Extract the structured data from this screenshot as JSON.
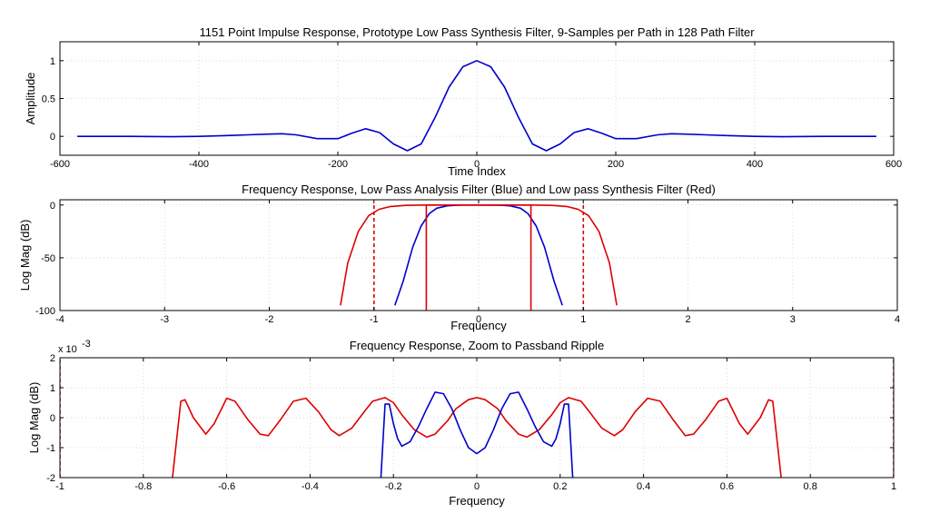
{
  "chart_data": [
    {
      "type": "line",
      "id": "impulse",
      "title": "1151 Point Impulse Response, Prototype Low Pass Synthesis Filter, 9-Samples per Path in 128 Path Filter",
      "xlabel": "Time Index",
      "ylabel": "Amplitude",
      "xlim": [
        -600,
        600
      ],
      "ylim": [
        -0.25,
        1.25
      ],
      "xticks": [
        -600,
        -400,
        -200,
        0,
        200,
        400,
        600
      ],
      "xtick_labels": [
        "-600",
        "-400",
        "-200",
        "0",
        "200",
        "400",
        "600"
      ],
      "yticks": [
        0,
        0.5,
        1
      ],
      "ytick_labels": [
        "0",
        "0.5",
        "1"
      ],
      "grid": true,
      "series": [
        {
          "color": "#0000cc",
          "x": [
            -575,
            -500,
            -440,
            -400,
            -360,
            -330,
            -300,
            -280,
            -260,
            -230,
            -200,
            -180,
            -160,
            -140,
            -120,
            -100,
            -80,
            -60,
            -40,
            -20,
            0,
            20,
            40,
            60,
            80,
            100,
            120,
            140,
            160,
            180,
            200,
            230,
            260,
            280,
            300,
            330,
            360,
            400,
            440,
            500,
            575
          ],
          "y": [
            0,
            0,
            -0.005,
            0,
            0.01,
            0.02,
            0.03,
            0.035,
            0.02,
            -0.03,
            -0.03,
            0.04,
            0.1,
            0.05,
            -0.1,
            -0.19,
            -0.1,
            0.25,
            0.65,
            0.92,
            1.0,
            0.92,
            0.65,
            0.25,
            -0.1,
            -0.19,
            -0.1,
            0.05,
            0.1,
            0.04,
            -0.03,
            -0.03,
            0.02,
            0.035,
            0.03,
            0.02,
            0.01,
            0,
            -0.005,
            0,
            0
          ]
        }
      ]
    },
    {
      "type": "line",
      "id": "freq",
      "title": "Frequency Response, Low Pass Analysis Filter (Blue) and Low pass Synthesis Filter (Red)",
      "xlabel": "Frequency",
      "ylabel": "Log Mag (dB)",
      "xlim": [
        -4,
        4
      ],
      "ylim": [
        -100,
        5
      ],
      "xticks": [
        -4,
        -3,
        -2,
        -1,
        0,
        1,
        2,
        3,
        4
      ],
      "xtick_labels": [
        "-4",
        "-3",
        "-2",
        "-1",
        "0",
        "1",
        "2",
        "3",
        "4"
      ],
      "yticks": [
        -100,
        -50,
        0
      ],
      "ytick_labels": [
        "-100",
        "-50",
        "0"
      ],
      "grid": true,
      "series": [
        {
          "color": "#dd0000",
          "x": [
            -1.32,
            -1.25,
            -1.15,
            -1.05,
            -0.95,
            -0.85,
            -0.7,
            -0.5,
            0,
            0.5,
            0.7,
            0.85,
            0.95,
            1.05,
            1.15,
            1.25,
            1.32
          ],
          "y": [
            -95,
            -55,
            -25,
            -10,
            -4,
            -1.5,
            -0.3,
            0,
            0,
            0,
            -0.3,
            -1.5,
            -4,
            -10,
            -25,
            -55,
            -95
          ]
        },
        {
          "color": "#0000cc",
          "x": [
            -0.8,
            -0.72,
            -0.63,
            -0.55,
            -0.47,
            -0.4,
            -0.3,
            -0.2,
            0,
            0.2,
            0.3,
            0.4,
            0.47,
            0.55,
            0.63,
            0.72,
            0.8
          ],
          "y": [
            -95,
            -72,
            -40,
            -20,
            -8,
            -3,
            -0.8,
            -0.1,
            0,
            -0.1,
            -0.8,
            -3,
            -8,
            -20,
            -40,
            -72,
            -95
          ]
        },
        {
          "color": "#dd0000",
          "x": [
            -0.5,
            -0.5,
            0.5,
            0.5
          ],
          "y": [
            -100,
            0,
            0,
            -100
          ]
        },
        {
          "color": "#dd0000",
          "dashed": true,
          "x": [
            -1,
            -1
          ],
          "y": [
            -100,
            0
          ]
        },
        {
          "color": "#dd0000",
          "dashed": true,
          "x": [
            1,
            1
          ],
          "y": [
            -100,
            0
          ]
        }
      ]
    },
    {
      "type": "line",
      "id": "ripple",
      "title": "Frequency Response, Zoom to Passband Ripple",
      "xlabel": "Frequency",
      "ylabel": "Log Mag (dB)",
      "exponent_label": "x 10",
      "exponent_power": "-3",
      "xlim": [
        -1,
        1
      ],
      "ylim": [
        -2,
        2
      ],
      "xticks": [
        -1,
        -0.8,
        -0.6,
        -0.4,
        -0.2,
        0,
        0.2,
        0.4,
        0.6,
        0.8,
        1
      ],
      "xtick_labels": [
        "-1",
        "-0.8",
        "-0.6",
        "-0.4",
        "-0.2",
        "0",
        "0.2",
        "0.4",
        "0.6",
        "0.8",
        "1"
      ],
      "yticks": [
        -2,
        -1,
        0,
        1,
        2
      ],
      "ytick_labels": [
        "-2",
        "-1",
        "0",
        "1",
        "2"
      ],
      "grid": true,
      "series": [
        {
          "color": "#dd0000",
          "x": [
            -0.73,
            -0.71,
            -0.7,
            -0.68,
            -0.65,
            -0.63,
            -0.6,
            -0.58,
            -0.55,
            -0.52,
            -0.5,
            -0.47,
            -0.44,
            -0.41,
            -0.38,
            -0.35,
            -0.33,
            -0.3,
            -0.27,
            -0.25,
            -0.22,
            -0.2,
            -0.18,
            -0.15,
            -0.12,
            -0.1,
            -0.07,
            -0.05,
            -0.02,
            0,
            0.02,
            0.05,
            0.07,
            0.1,
            0.12,
            0.15,
            0.18,
            0.2,
            0.22,
            0.25,
            0.27,
            0.3,
            0.33,
            0.35,
            0.38,
            0.41,
            0.44,
            0.47,
            0.5,
            0.52,
            0.55,
            0.58,
            0.6,
            0.63,
            0.65,
            0.68,
            0.7,
            0.71,
            0.73
          ],
          "y": [
            -2,
            0.55,
            0.6,
            0.0,
            -0.55,
            -0.2,
            0.65,
            0.55,
            -0.05,
            -0.55,
            -0.6,
            -0.05,
            0.55,
            0.65,
            0.2,
            -0.4,
            -0.6,
            -0.35,
            0.2,
            0.55,
            0.67,
            0.5,
            0.1,
            -0.4,
            -0.65,
            -0.55,
            -0.1,
            0.3,
            0.6,
            0.67,
            0.6,
            0.3,
            -0.1,
            -0.55,
            -0.65,
            -0.4,
            0.1,
            0.5,
            0.67,
            0.55,
            0.2,
            -0.35,
            -0.6,
            -0.4,
            0.2,
            0.65,
            0.55,
            -0.05,
            -0.6,
            -0.55,
            -0.05,
            0.55,
            0.65,
            -0.2,
            -0.55,
            0.0,
            0.6,
            0.55,
            -2
          ]
        },
        {
          "color": "#0000cc",
          "x": [
            -0.23,
            -0.22,
            -0.21,
            -0.2,
            -0.19,
            -0.18,
            -0.16,
            -0.14,
            -0.12,
            -0.1,
            -0.08,
            -0.06,
            -0.04,
            -0.02,
            0,
            0.02,
            0.04,
            0.06,
            0.08,
            0.1,
            0.12,
            0.14,
            0.16,
            0.18,
            0.19,
            0.2,
            0.21,
            0.22,
            0.23
          ],
          "y": [
            -2,
            0.45,
            0.45,
            -0.2,
            -0.7,
            -0.95,
            -0.8,
            -0.3,
            0.3,
            0.85,
            0.8,
            0.3,
            -0.4,
            -1.0,
            -1.2,
            -1.0,
            -0.4,
            0.3,
            0.8,
            0.85,
            0.3,
            -0.3,
            -0.8,
            -0.95,
            -0.7,
            -0.2,
            0.45,
            0.45,
            -2
          ]
        },
        {
          "color": "#dd0000",
          "dashed": true,
          "x": [
            -1,
            -1
          ],
          "y": [
            -2,
            2
          ]
        },
        {
          "color": "#dd0000",
          "dashed": true,
          "x": [
            1,
            1
          ],
          "y": [
            -2,
            2
          ]
        }
      ]
    }
  ]
}
